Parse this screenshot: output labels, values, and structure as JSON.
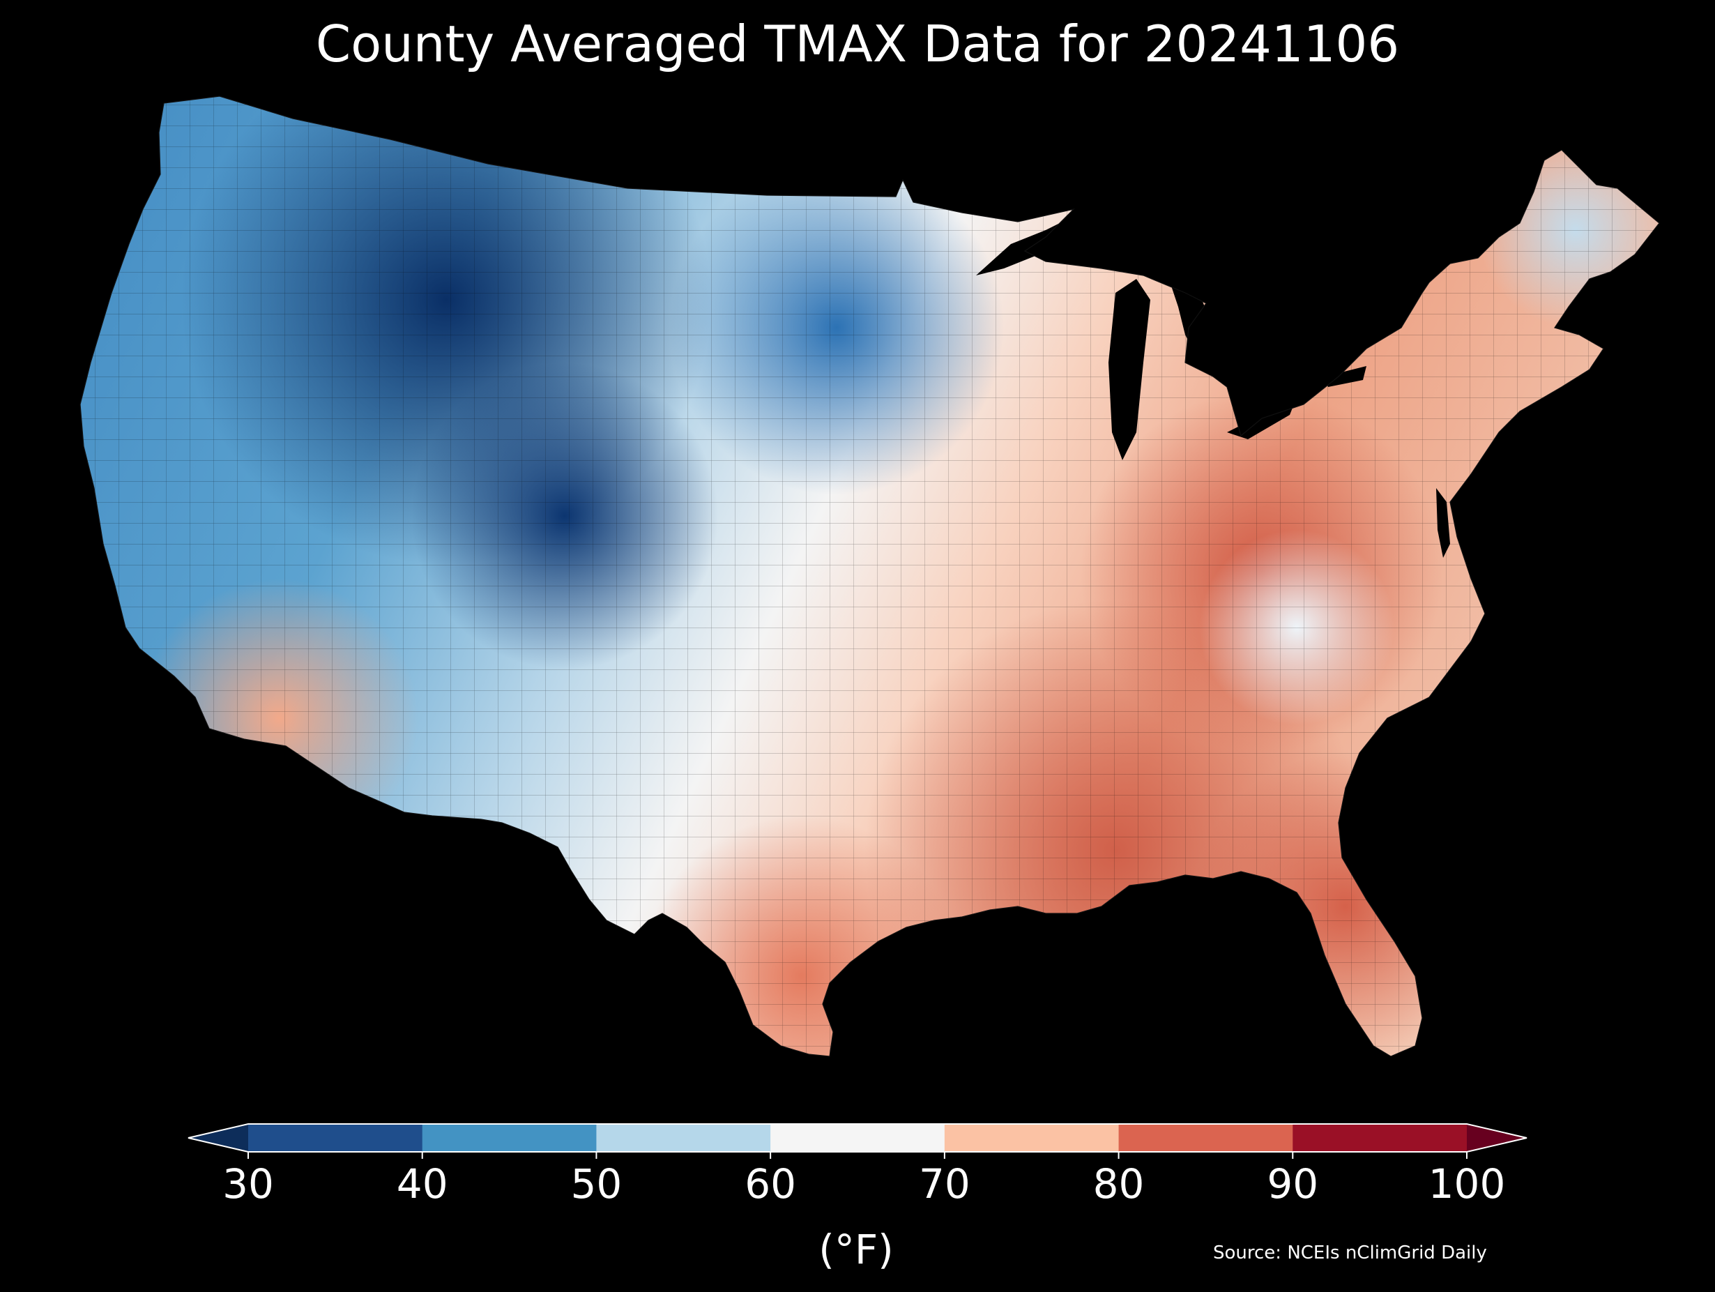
{
  "title": "County Averaged TMAX Data for 20241106",
  "colorbar": {
    "ticks": [
      "30",
      "40",
      "50",
      "60",
      "70",
      "80",
      "90",
      "100"
    ],
    "tick_values": [
      30,
      40,
      50,
      60,
      70,
      80,
      90,
      100
    ],
    "colors": [
      "#1f4e8c",
      "#4393c3",
      "#b5d7ea",
      "#f5f5f5",
      "#fbc2a4",
      "#db6450",
      "#9a1026"
    ],
    "under_color": "#0d2d5a",
    "over_color": "#67001f",
    "units": "(°F)",
    "extend": "both"
  },
  "source": "Source: NCEIs nClimGrid Daily",
  "map": {
    "type": "choropleth",
    "region": "Contiguous United States counties",
    "variable": "TMAX",
    "date": "20241106"
  }
}
